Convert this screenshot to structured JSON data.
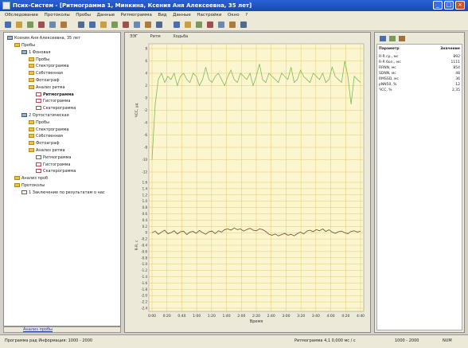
{
  "window": {
    "title": "Псих-Cистем - [Ритмограмма 1, Минкина, Ксения Аня Алексеевна, 35 лет]",
    "minimize_glyph": "_",
    "maximize_glyph": "□",
    "close_glyph": "×"
  },
  "menu": [
    "Обследование",
    "Протоколы",
    "Пробы",
    "Данные",
    "Ритмограмма",
    "Вид",
    "Данные",
    "Настройки",
    "Окно",
    "?"
  ],
  "toolbar_icons": [
    "new-icon",
    "open-icon",
    "save-icon",
    "print-icon",
    "cut-icon",
    "copy-icon",
    "paste-icon",
    "undo-icon",
    "redo-icon",
    "zoom-in-icon",
    "zoom-out-icon",
    "marker-icon",
    "cursor-icon",
    "play-icon",
    "stop-icon",
    "record-icon",
    "filter-icon",
    "export-icon",
    "grid-icon",
    "window-icon",
    "help-icon"
  ],
  "tree": {
    "root": "Ксения Аня Алексеевна, 35 лет",
    "items": [
      {
        "label": "Пробы",
        "level": 1,
        "icon": "folder"
      },
      {
        "label": "1 Фоновая",
        "level": 2,
        "icon": "pc"
      },
      {
        "label": "Пробы",
        "level": 3,
        "icon": "folder"
      },
      {
        "label": "Спектрограмма",
        "level": 3,
        "icon": "folder"
      },
      {
        "label": "Собственная",
        "level": 3,
        "icon": "folder"
      },
      {
        "label": "Фотоаграф",
        "level": 3,
        "icon": "folder"
      },
      {
        "label": "Анализ ритма",
        "level": 3,
        "icon": "folder"
      },
      {
        "label": "Ритмограмма",
        "level": 4,
        "icon": "doc"
      },
      {
        "label": "Гистограмма",
        "level": 4,
        "icon": "doc"
      },
      {
        "label": "Скатерограмма",
        "level": 4,
        "icon": "doc"
      },
      {
        "label": "2 Ортостатическая",
        "level": 2,
        "icon": "pc"
      },
      {
        "label": "Пробы",
        "level": 3,
        "icon": "folder"
      },
      {
        "label": "Спектрограмма",
        "level": 3,
        "icon": "folder"
      },
      {
        "label": "Собственная",
        "level": 3,
        "icon": "folder"
      },
      {
        "label": "Фотоаграф",
        "level": 3,
        "icon": "folder"
      },
      {
        "label": "Анализ ритма",
        "level": 3,
        "icon": "folder"
      },
      {
        "label": "Ритмограмма",
        "level": 4,
        "icon": "doc"
      },
      {
        "label": "Гистограмма",
        "level": 4,
        "icon": "doc"
      },
      {
        "label": "Скатерограмма",
        "level": 4,
        "icon": "doc"
      },
      {
        "label": "Анализ проб",
        "level": 1,
        "icon": "folder"
      },
      {
        "label": "Протоколы",
        "level": 1,
        "icon": "folder"
      },
      {
        "label": "1 Заключение по результатам о нас",
        "level": 2,
        "icon": "doc"
      }
    ],
    "footer_tab": "Анализ пробы"
  },
  "chart_tabs": [
    "ЭЭГ",
    "Ритм",
    "Ходьба"
  ],
  "chart_data": {
    "type": "line",
    "xlabel": "Время",
    "x_ticks": [
      "0:00",
      "0:20",
      "0:40",
      "1:00",
      "1:20",
      "1:40",
      "2:00",
      "2:20",
      "2:40",
      "3:00",
      "3:20",
      "3:40",
      "4:00",
      "4:20",
      "4:40"
    ],
    "upper": {
      "ylabel": "ЧСС, уд",
      "y_ticks": [
        "8",
        "6",
        "4",
        "2",
        "0",
        "-2",
        "-4",
        "-6",
        "-8",
        "-10",
        "-12"
      ],
      "ylim": [
        -12,
        8
      ],
      "values": [
        -10,
        -1,
        3,
        4,
        2.5,
        3.5,
        3,
        4,
        2,
        3.5,
        4,
        3,
        2.5,
        4,
        3.5,
        2,
        3,
        5,
        3,
        2.5,
        3.5,
        4,
        3,
        2,
        3.5,
        4.5,
        3,
        2.5,
        4,
        3.5,
        3,
        4,
        2,
        3.5,
        5.5,
        3,
        2.5,
        4,
        3.5,
        3,
        2.5,
        4,
        3.5,
        3,
        5,
        2.5,
        3,
        4.5,
        3.5,
        3,
        2.5,
        4,
        3.5,
        3,
        4,
        2.5,
        3,
        5,
        3.5,
        3,
        2.5,
        6,
        3.5,
        -1,
        3.5,
        3,
        2.5
      ]
    },
    "lower": {
      "ylabel": "R-R, с",
      "y_ticks": [
        "1.6",
        "1.4",
        "1.2",
        "1.0",
        "0.8",
        "0.6",
        "0.4",
        "0.2",
        "0",
        "-0.2",
        "-0.4",
        "-0.6",
        "-0.8",
        "-1.0",
        "-1.2",
        "-1.4",
        "-1.6",
        "-1.8",
        "-2.0",
        "-2.2",
        "-2.4"
      ],
      "ylim": [
        -2.4,
        1.6
      ],
      "values": [
        0,
        0.05,
        -0.05,
        0.02,
        0.08,
        -0.03,
        0,
        0.06,
        -0.04,
        0.03,
        0.05,
        -0.06,
        0.02,
        0.04,
        -0.02,
        0.07,
        0,
        -0.05,
        0.03,
        0.05,
        -0.03,
        0.06,
        0.02,
        0.1,
        0.12,
        0.08,
        0.15,
        0.1,
        0.12,
        0.05,
        0.1,
        0.14,
        0.08,
        0.06,
        0.12,
        0.1,
        0.04,
        -0.05,
        -0.08,
        -0.04,
        -0.1,
        -0.06,
        -0.02,
        -0.08,
        -0.05,
        -0.1,
        -0.03,
        0.02,
        -0.04,
        0.05,
        0.08,
        0.03,
        0.1,
        0.06,
        0.12,
        0.04,
        0.09,
        0.02,
        -0.02,
        0.03,
        0.05,
        0,
        -0.03,
        0.04,
        0.06,
        0.02,
        0.05
      ]
    },
    "colors": {
      "upper": "#7fb85a",
      "lower": "#6a4a30",
      "background": "#fbf6cf",
      "grid": "#e9c76a"
    }
  },
  "right_panel": {
    "header": "Параметр",
    "header_value": "Значение",
    "rows": [
      {
        "name": "R-R ср., мс",
        "value": "892"
      },
      {
        "name": "R-R бол., мс",
        "value": "1111"
      },
      {
        "name": "RRNN, мс",
        "value": "854"
      },
      {
        "name": "SDNN, мс",
        "value": "48"
      },
      {
        "name": "RMSSD, мс",
        "value": "36"
      },
      {
        "name": "pNN50, %",
        "value": "12"
      },
      {
        "name": "ЧСС, %",
        "value": "2,35"
      }
    ]
  },
  "status": {
    "left": "Программа рад Информация: 1000 - 2000",
    "middle": "Ритмограмма 4,1 0,000 мс / с",
    "right1": "1000 - 2000",
    "right2": "NUM"
  }
}
